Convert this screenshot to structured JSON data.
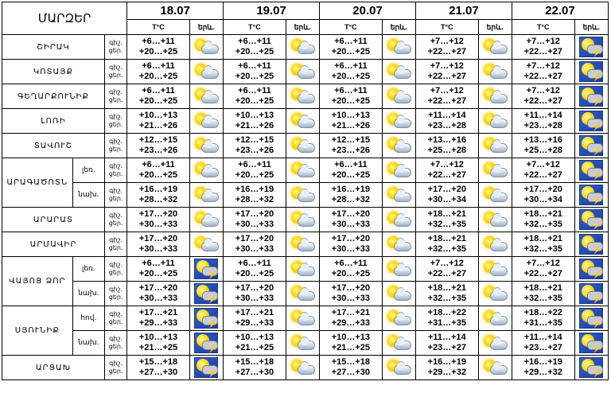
{
  "header": {
    "title": "ՄԱՐԶԵՐ",
    "dates": [
      "18.07",
      "19.07",
      "20.07",
      "21.07",
      "22.07"
    ],
    "temp_label": "T°C",
    "event_label": "երև.",
    "day_label": "ցերեկ"
  },
  "labels": {
    "night": "գիշ.",
    "day": "ցեր."
  },
  "rows": [
    {
      "region": "ՇԻՐԱԿ",
      "sub": "",
      "lines": [
        [
          "+6…+11",
          "+20…+25"
        ],
        [
          "+6…+11",
          "+20…+25"
        ],
        [
          "+6…+11",
          "+20…+25"
        ],
        [
          "+7…+12",
          "+22…+27"
        ],
        [
          "+7…+12",
          "+22…+27"
        ]
      ],
      "icons": [
        "partly-cloudy",
        "partly-cloudy",
        "partly-cloudy",
        "partly-cloudy",
        "thunderstorm"
      ]
    },
    {
      "region": "ԿՈՏԱՅՔ",
      "sub": "",
      "lines": [
        [
          "+6…+11",
          "+20…+25"
        ],
        [
          "+6…+11",
          "+20…+25"
        ],
        [
          "+6…+11",
          "+20…+25"
        ],
        [
          "+7…+12",
          "+22…+27"
        ],
        [
          "+7…+12",
          "+22…+27"
        ]
      ],
      "icons": [
        "partly-cloudy",
        "partly-cloudy",
        "partly-cloudy",
        "partly-cloudy",
        "thunderstorm"
      ]
    },
    {
      "region": "ԳԵՂԱՐՔՈՒՆԻՔ",
      "sub": "",
      "lines": [
        [
          "+6…+11",
          "+20…+25"
        ],
        [
          "+6…+11",
          "+20…+25"
        ],
        [
          "+6…+11",
          "+20…+25"
        ],
        [
          "+7…+12",
          "+22…+27"
        ],
        [
          "+7…+12",
          "+22…+27"
        ]
      ],
      "icons": [
        "partly-cloudy",
        "partly-cloudy",
        "partly-cloudy",
        "partly-cloudy",
        "thunderstorm"
      ]
    },
    {
      "region": "ԼՈՌԻ",
      "sub": "",
      "lines": [
        [
          "+10…+13",
          "+21…+26"
        ],
        [
          "+10…+13",
          "+21…+26"
        ],
        [
          "+10…+13",
          "+21…+26"
        ],
        [
          "+11…+14",
          "+23…+28"
        ],
        [
          "+11…+14",
          "+23…+28"
        ]
      ],
      "icons": [
        "partly-cloudy",
        "partly-cloudy",
        "partly-cloudy",
        "partly-cloudy",
        "thunderstorm"
      ]
    },
    {
      "region": "ՏԱՎՈՒՇ",
      "sub": "",
      "lines": [
        [
          "+12…+15",
          "+23…+26"
        ],
        [
          "+12…+15",
          "+23…+26"
        ],
        [
          "+12…+15",
          "+23…+26"
        ],
        [
          "+13…+16",
          "+25…+28"
        ],
        [
          "+13…+16",
          "+25…+28"
        ]
      ],
      "icons": [
        "partly-cloudy",
        "partly-cloudy",
        "partly-cloudy",
        "partly-cloudy",
        "thunderstorm"
      ]
    },
    {
      "region": "ԱՐԱԳԱԾՈՏՆ",
      "sub": "լեռ.",
      "lines": [
        [
          "+6…+11",
          "+20…+25"
        ],
        [
          "+6…+11",
          "+20…+25"
        ],
        [
          "+6…+11",
          "+20…+25"
        ],
        [
          "+7…+12",
          "+22…+27"
        ],
        [
          "+7…+12",
          "+22…+27"
        ]
      ],
      "icons": [
        "partly-cloudy",
        "partly-cloudy",
        "partly-cloudy",
        "partly-cloudy",
        "thunderstorm"
      ]
    },
    {
      "region": "",
      "sub": "նախ.",
      "lines": [
        [
          "+16…+19",
          "+28…+32"
        ],
        [
          "+16…+19",
          "+28…+32"
        ],
        [
          "+16…+19",
          "+28…+32"
        ],
        [
          "+17…+20",
          "+30…+34"
        ],
        [
          "+17…+20",
          "+30…+34"
        ]
      ],
      "icons": [
        "partly-cloudy",
        "partly-cloudy",
        "partly-cloudy",
        "partly-cloudy",
        "thunderstorm"
      ]
    },
    {
      "region": "ԱՐԱՐԱՏ",
      "sub": "",
      "lines": [
        [
          "+17…+20",
          "+30…+33"
        ],
        [
          "+17…+20",
          "+30…+33"
        ],
        [
          "+17…+20",
          "+30…+33"
        ],
        [
          "+18…+21",
          "+32…+35"
        ],
        [
          "+18…+21",
          "+32…+35"
        ]
      ],
      "icons": [
        "partly-cloudy",
        "partly-cloudy",
        "partly-cloudy",
        "partly-cloudy",
        "thunderstorm"
      ]
    },
    {
      "region": "ԱՐՄԱՎԻՐ",
      "sub": "",
      "lines": [
        [
          "+17…+20",
          "+30…+33"
        ],
        [
          "+17…+20",
          "+30…+33"
        ],
        [
          "+17…+20",
          "+30…+33"
        ],
        [
          "+18…+21",
          "+32…+35"
        ],
        [
          "+18…+21",
          "+32…+35"
        ]
      ],
      "icons": [
        "partly-cloudy",
        "partly-cloudy",
        "partly-cloudy",
        "partly-cloudy",
        "thunderstorm"
      ]
    },
    {
      "region": "ՎԱՅՈՑ ՁՈՐ",
      "sub": "լեռ.",
      "lines": [
        [
          "+6…+11",
          "+20…+25"
        ],
        [
          "+6…+11",
          "+20…+25"
        ],
        [
          "+6…+11",
          "+20…+25"
        ],
        [
          "+7…+12",
          "+22…+27"
        ],
        [
          "+7…+12",
          "+22…+27"
        ]
      ],
      "icons": [
        "thunderstorm",
        "partly-cloudy",
        "partly-cloudy",
        "partly-cloudy",
        "thunderstorm"
      ]
    },
    {
      "region": "",
      "sub": "նախ.",
      "lines": [
        [
          "+17…+20",
          "+30…+33"
        ],
        [
          "+17…+20",
          "+30…+33"
        ],
        [
          "+17…+20",
          "+30…+33"
        ],
        [
          "+18…+21",
          "+32…+35"
        ],
        [
          "+18…+21",
          "+32…+35"
        ]
      ],
      "icons": [
        "thunderstorm",
        "partly-cloudy",
        "partly-cloudy",
        "partly-cloudy",
        "thunderstorm"
      ]
    },
    {
      "region": "ՍՅՈՒՆԻՔ",
      "sub": "հով.",
      "lines": [
        [
          "+17…+21",
          "+29…+33"
        ],
        [
          "+17…+21",
          "+29…+33"
        ],
        [
          "+17…+21",
          "+29…+33"
        ],
        [
          "+18…+22",
          "+31…+35"
        ],
        [
          "+18…+22",
          "+31…+35"
        ]
      ],
      "icons": [
        "thunderstorm",
        "partly-cloudy",
        "partly-cloudy",
        "partly-cloudy",
        "thunderstorm"
      ]
    },
    {
      "region": "",
      "sub": "նախ.",
      "lines": [
        [
          "+10…+13",
          "+21…+25"
        ],
        [
          "+10…+13",
          "+21…+25"
        ],
        [
          "+10…+13",
          "+21…+25"
        ],
        [
          "+11…+14",
          "+23…+27"
        ],
        [
          "+11…+14",
          "+23…+27"
        ]
      ],
      "icons": [
        "thunderstorm",
        "partly-cloudy",
        "partly-cloudy",
        "partly-cloudy",
        "thunderstorm"
      ]
    },
    {
      "region": "ԱՐՑԱԽ",
      "sub": "",
      "lines": [
        [
          "+15…+18",
          "+27…+30"
        ],
        [
          "+15…+18",
          "+27…+30"
        ],
        [
          "+15…+18",
          "+27…+30"
        ],
        [
          "+16…+19",
          "+29…+32"
        ],
        [
          "+16…+19",
          "+29…+32"
        ]
      ],
      "icons": [
        "thunderstorm",
        "partly-cloudy",
        "partly-cloudy",
        "partly-cloudy",
        "thunderstorm"
      ]
    }
  ]
}
